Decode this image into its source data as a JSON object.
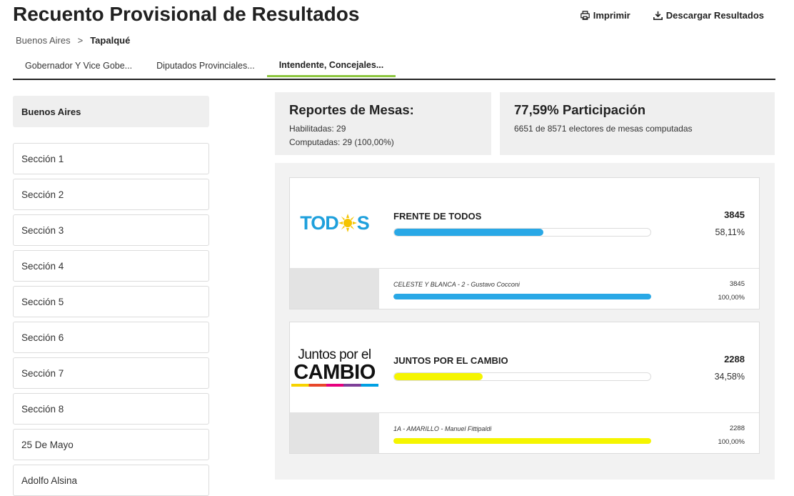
{
  "page": {
    "title": "Recuento Provisional de Resultados",
    "print_label": "Imprimir",
    "download_label": "Descargar Resultados"
  },
  "breadcrumb": {
    "root": "Buenos Aires",
    "separator": ">",
    "current": "Tapalqué"
  },
  "tabs": [
    {
      "label": "Gobernador Y Vice Gobe...",
      "active": false
    },
    {
      "label": "Diputados Provinciales...",
      "active": false
    },
    {
      "label": "Intendente, Concejales...",
      "active": true
    }
  ],
  "sidebar": {
    "header": "Buenos Aires",
    "items": [
      "Sección 1",
      "Sección 2",
      "Sección 3",
      "Sección 4",
      "Sección 5",
      "Sección 6",
      "Sección 7",
      "Sección 8",
      "25 De Mayo",
      "Adolfo Alsina"
    ]
  },
  "mesas": {
    "title": "Reportes de Mesas:",
    "habilitadas": "Habilitadas: 29",
    "computadas": "Computadas: 29 (100,00%)"
  },
  "participacion": {
    "title": "77,59% Participación",
    "detail": "6651 de 8571 electores de mesas computadas"
  },
  "parties": [
    {
      "logo_text": "TODOS",
      "name": "FRENTE DE TODOS",
      "votes": "3845",
      "pct": "58,11%",
      "fraction": 0.5811,
      "color": "#29a8e6",
      "list": {
        "name": "CELESTE Y BLANCA - 2 - Gustavo Cocconi",
        "votes": "3845",
        "pct": "100,00%",
        "fraction": 1.0
      }
    },
    {
      "logo_text_top": "Juntos por el",
      "logo_text_bottom": "CAMBIO",
      "name": "JUNTOS POR EL CAMBIO",
      "votes": "2288",
      "pct": "34,58%",
      "fraction": 0.3458,
      "color": "#f5f500",
      "list": {
        "name": "1A - AMARILLO - Manuel Fittipaldi",
        "votes": "2288",
        "pct": "100,00%",
        "fraction": 1.0
      }
    }
  ]
}
